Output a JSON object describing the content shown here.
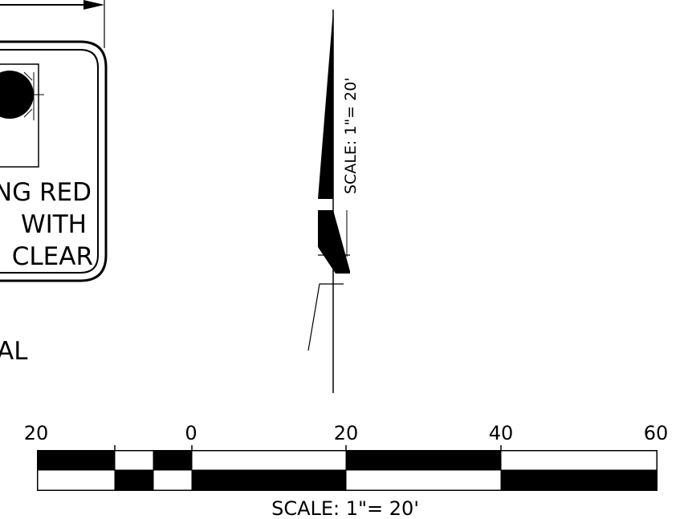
{
  "sign": {
    "line1": "NG RED",
    "line2": "WITH",
    "line3": "CLEAR"
  },
  "partial_label": "AL",
  "north_arrow": {
    "scale_text": "SCALE: 1\"= 20'"
  },
  "scale_bar": {
    "tick_labels": [
      "20",
      "0",
      "20",
      "40",
      "60"
    ],
    "scale_text": "SCALE:  1\"= 20'"
  },
  "colors": {
    "ink": "#000000",
    "paper": "#ffffff"
  }
}
